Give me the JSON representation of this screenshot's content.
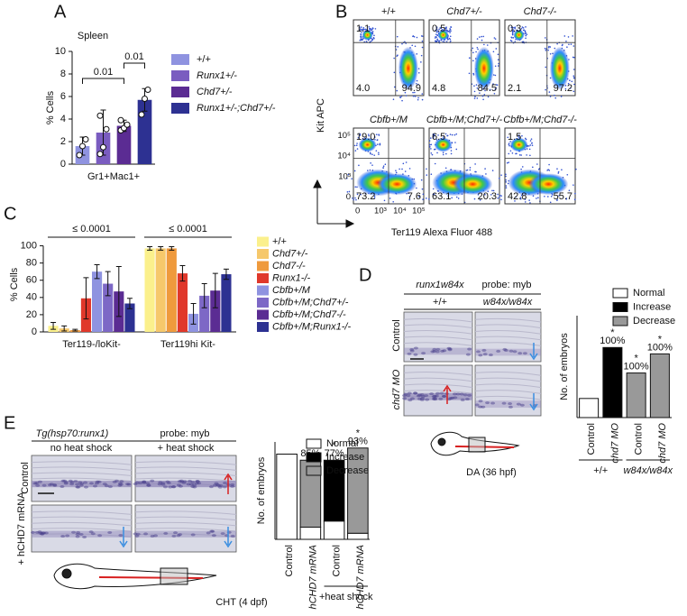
{
  "panel_labels": [
    "A",
    "B",
    "C",
    "D",
    "E"
  ],
  "chart_data": [
    {
      "type": "bar",
      "title": "Spleen",
      "ylabel": "% Cells",
      "categories": [
        "Gr1+Mac1+"
      ],
      "series": [
        {
          "name": "+/+",
          "color": "#8f93e0",
          "values": [
            1.6
          ],
          "errors": [
            0.8
          ],
          "points": [
            [
              0.8,
              1.6,
              2.2
            ]
          ]
        },
        {
          "name": "Runx1+/-",
          "color": "#7a5cc0",
          "values": [
            2.8
          ],
          "errors": [
            2.0
          ],
          "points": [
            [
              0.9,
              1.5,
              3.1,
              4.3
            ]
          ]
        },
        {
          "name": "Chd7+/-",
          "color": "#5b2c93",
          "values": [
            3.4
          ],
          "errors": [
            0.5
          ],
          "points": [
            [
              3.0,
              3.2,
              3.5,
              3.9
            ]
          ]
        },
        {
          "name": "Runx1+/-;Chd7+/-",
          "color": "#2d3192",
          "values": [
            5.7
          ],
          "errors": [
            1.0
          ],
          "points": [
            [
              4.4,
              5.8,
              6.6
            ]
          ]
        }
      ],
      "ylim": [
        0,
        10
      ],
      "yticks": [
        0,
        2,
        4,
        6,
        8,
        10
      ],
      "brackets": [
        {
          "label": "0.01",
          "between": [
            0,
            2
          ]
        },
        {
          "label": "0.01",
          "between": [
            2,
            3
          ]
        }
      ]
    },
    {
      "type": "bar",
      "ylabel": "% Cells",
      "categories": [
        "Ter119-/loKit-",
        "Ter119hi Kit-"
      ],
      "series": [
        {
          "name": "+/+",
          "color": "#fbf08c",
          "values": [
            7,
            97
          ],
          "errors": [
            4,
            2
          ]
        },
        {
          "name": "Chd7+/-",
          "color": "#f6c86b",
          "values": [
            4,
            97
          ],
          "errors": [
            3,
            2
          ]
        },
        {
          "name": "Chd7-/-",
          "color": "#ef9a3d",
          "values": [
            2,
            97
          ],
          "errors": [
            1,
            2
          ]
        },
        {
          "name": "Runx1-/-",
          "color": "#e0382b",
          "values": [
            39,
            68
          ],
          "errors": [
            24,
            9
          ]
        },
        {
          "name": "Cbfb+/M",
          "color": "#8f93e0",
          "values": [
            70,
            21
          ],
          "errors": [
            8,
            12
          ]
        },
        {
          "name": "Cbfb+/M;Chd7+/-",
          "color": "#7d68c6",
          "values": [
            56,
            42
          ],
          "errors": [
            14,
            14
          ]
        },
        {
          "name": "Cbfb+/M;Chd7-/-",
          "color": "#5b2c93",
          "values": [
            47,
            48
          ],
          "errors": [
            29,
            20
          ]
        },
        {
          "name": "Cbfb+/M;Runx1-/-",
          "color": "#2d3192",
          "values": [
            33,
            67
          ],
          "errors": [
            6,
            6
          ]
        }
      ],
      "ylim": [
        0,
        110
      ],
      "yticks": [
        0,
        20,
        40,
        60,
        80,
        100
      ],
      "category_annotations": [
        "≤ 0.0001",
        "≤ 0.0001"
      ]
    },
    {
      "type": "bar",
      "stacked": true,
      "ylabel": "No. of embryos",
      "categories": [
        "Control",
        "chd7 MO",
        "Control",
        "chd7 MO"
      ],
      "series": [
        {
          "name": "Normal",
          "color": "#ffffff",
          "values": [
            3,
            0,
            0,
            0
          ]
        },
        {
          "name": "Increase",
          "color": "#000000",
          "values": [
            0,
            11,
            0,
            0
          ]
        },
        {
          "name": "Decrease",
          "color": "#999999",
          "values": [
            0,
            0,
            7,
            10
          ]
        }
      ],
      "ylim": [
        0,
        16
      ],
      "bar_annotations": [
        null,
        "100%",
        "100%",
        "100%"
      ],
      "significance": [
        null,
        "*",
        "*",
        "*"
      ],
      "groups": [
        {
          "label": "+/+",
          "span": [
            0,
            1
          ]
        },
        {
          "label": "w84x/w84x",
          "span": [
            2,
            3
          ]
        }
      ]
    },
    {
      "type": "bar",
      "stacked": true,
      "ylabel": "No. of embryos",
      "categories": [
        "Control",
        "hCHD7 mRNA",
        "Control",
        "hCHD7 mRNA"
      ],
      "series": [
        {
          "name": "Normal",
          "color": "#ffffff",
          "values": [
            14,
            2,
            3,
            1
          ]
        },
        {
          "name": "Increase",
          "color": "#000000",
          "values": [
            0,
            0,
            10,
            0
          ]
        },
        {
          "name": "Decrease",
          "color": "#999999",
          "values": [
            0,
            11,
            0,
            14
          ]
        }
      ],
      "ylim": [
        0,
        16
      ],
      "bar_annotations": [
        null,
        "85%",
        "77%",
        "93%"
      ],
      "significance": [
        null,
        "*",
        "*",
        "*"
      ],
      "groups": [
        {
          "label": "+heat shock",
          "span": [
            2,
            3
          ]
        }
      ]
    }
  ],
  "flow": {
    "y_axis_label": "Kit APC",
    "x_axis_label": "Ter119 Alexa Fluor 488",
    "y_tick_labels": [
      "10⁵",
      "10⁴",
      "10³",
      "0"
    ],
    "x_tick_labels": [
      "0",
      "10³",
      "10⁴",
      "10⁵"
    ],
    "plots": [
      {
        "title": "+/+",
        "upper_left": "1.1",
        "lower_left": "4.0",
        "lower_right": "94.9",
        "lower_right_color": "#111111"
      },
      {
        "title": "Chd7+/-",
        "upper_left": "0.5",
        "lower_left": "4.8",
        "lower_right": "84.5",
        "lower_right_color": "#111111"
      },
      {
        "title": "Chd7-/-",
        "upper_left": "0.3",
        "lower_left": "2.1",
        "lower_right": "97.2",
        "lower_right_color": "#111111"
      },
      {
        "title": "Cbfb+/M",
        "upper_left": "19.0",
        "lower_left": "73.2",
        "lower_right": "7.6",
        "lower_right_color": "#f0a030"
      },
      {
        "title": "Cbfb+/M;Chd7+/-",
        "upper_left": "6.5",
        "lower_left": "63.1",
        "lower_right": "20.3",
        "lower_right_color": "#e8602a"
      },
      {
        "title": "Cbfb+/M;Chd7-/-",
        "upper_left": "1.5",
        "lower_left": "42.8",
        "lower_right": "55.7",
        "lower_right_color": "#e0262a"
      }
    ]
  },
  "panel_d": {
    "header": "runx1w84x",
    "probe": "probe: myb",
    "columns": [
      "+/+",
      "w84x/w84x"
    ],
    "rows": [
      "Control",
      "chd7 MO"
    ],
    "diagram_label": "DA (36 hpf)"
  },
  "panel_e": {
    "header": "Tg(hsp70:runx1)",
    "probe": "probe: myb",
    "columns": [
      "no heat shock",
      "+ heat shock"
    ],
    "rows": [
      "Control",
      "+ hCHD7 mRNA"
    ],
    "diagram_label": "CHT (4 dpf)"
  }
}
